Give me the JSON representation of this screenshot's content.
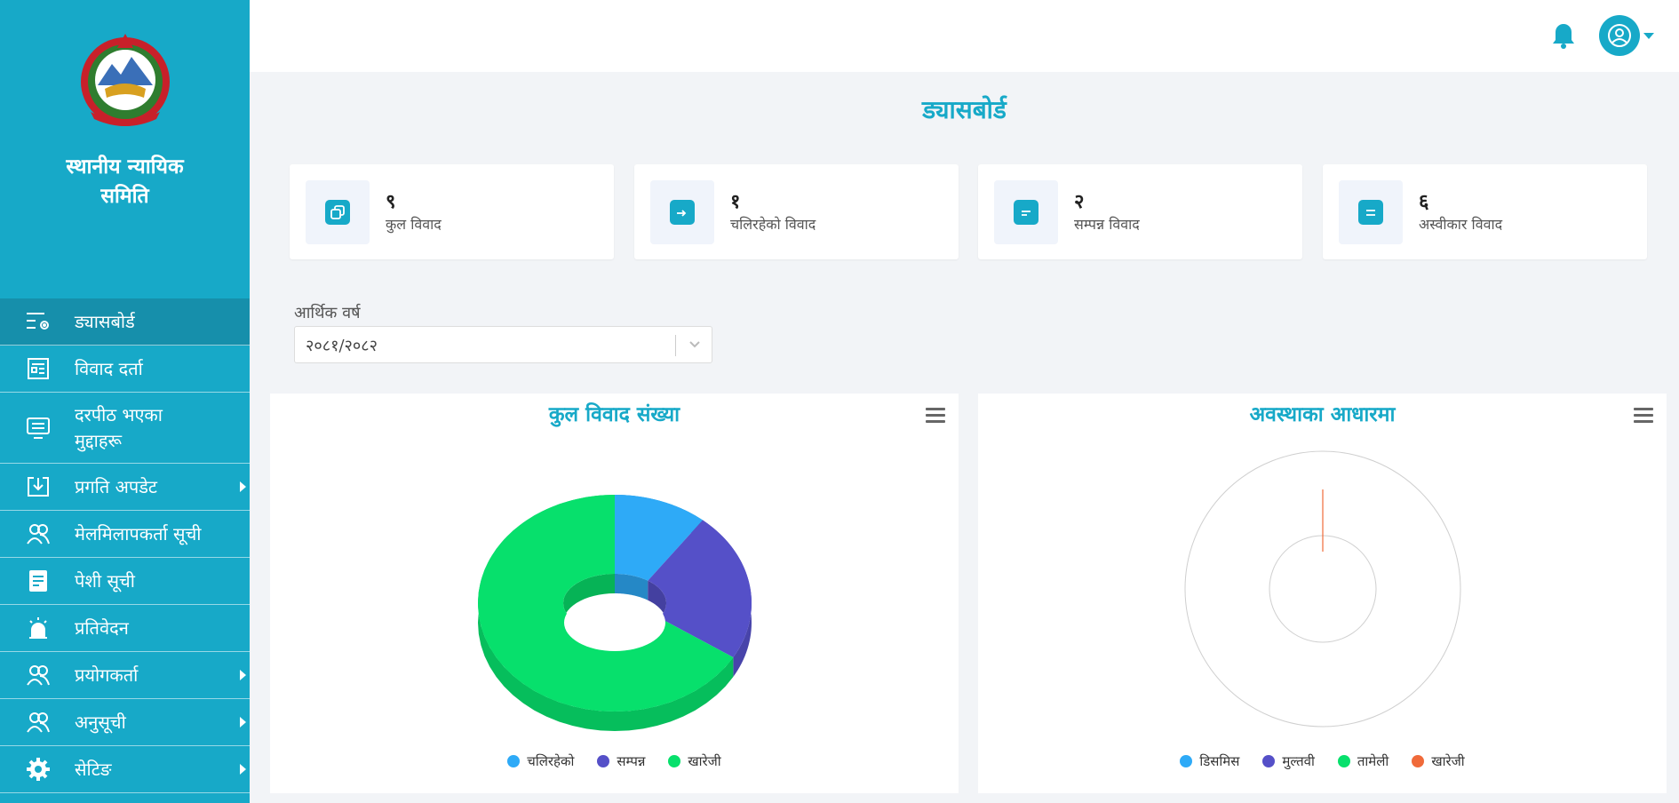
{
  "sidebar": {
    "brand": "स्थानीय न्यायिक समिति",
    "items": [
      {
        "label": "ड्यासबोर्ड",
        "icon": "dashboard-settings-icon",
        "active": true,
        "submenu": false
      },
      {
        "label": "विवाद दर्ता",
        "icon": "form-icon",
        "active": false,
        "submenu": false
      },
      {
        "label": "दरपीठ भएका मुद्दाहरू",
        "icon": "monitor-icon",
        "active": false,
        "submenu": false
      },
      {
        "label": "प्रगति अपडेट",
        "icon": "download-box-icon",
        "active": false,
        "submenu": true
      },
      {
        "label": "मेलमिलापकर्ता सूची",
        "icon": "users-icon",
        "active": false,
        "submenu": false
      },
      {
        "label": "पेशी सूची",
        "icon": "document-icon",
        "active": false,
        "submenu": false
      },
      {
        "label": "प्रतिवेदन",
        "icon": "alarm-icon",
        "active": false,
        "submenu": false
      },
      {
        "label": "प्रयोगकर्ता",
        "icon": "users-icon",
        "active": false,
        "submenu": true
      },
      {
        "label": "अनुसूची",
        "icon": "users-icon",
        "active": false,
        "submenu": true
      },
      {
        "label": "सेटिङ",
        "icon": "gear-icon",
        "active": false,
        "submenu": true
      }
    ]
  },
  "header": {
    "title": "ड्यासबोर्ड"
  },
  "stats": [
    {
      "value": "९",
      "label": "कुल विवाद",
      "icon": "copy-icon"
    },
    {
      "value": "१",
      "label": "चलिरहेको विवाद",
      "icon": "file-arrow-icon"
    },
    {
      "value": "२",
      "label": "सम्पन्न विवाद",
      "icon": "file-text-icon"
    },
    {
      "value": "६",
      "label": "अस्वीकार विवाद",
      "icon": "list-icon"
    }
  ],
  "filter": {
    "label": "आर्थिक वर्ष",
    "value": "२०८१/२०८२"
  },
  "charts": [
    {
      "title": "कुल विवाद संख्या",
      "legend": [
        {
          "name": "चलिरहेको",
          "color": "#2eaaf7"
        },
        {
          "name": "सम्पन्न",
          "color": "#5550c8"
        },
        {
          "name": "खारेजी",
          "color": "#07e06c"
        }
      ]
    },
    {
      "title": "अवस्थाका आधारमा",
      "legend": [
        {
          "name": "डिसमिस",
          "color": "#2eaaf7"
        },
        {
          "name": "मुल्तवी",
          "color": "#5550c8"
        },
        {
          "name": "तामेली",
          "color": "#07e06c"
        },
        {
          "name": "खारेजी",
          "color": "#f06a3a"
        }
      ]
    }
  ],
  "chart_data": [
    {
      "type": "pie",
      "title": "कुल विवाद संख्या",
      "categories": [
        "चलिरहेको",
        "सम्पन्न",
        "खारेजी"
      ],
      "values": [
        1,
        2,
        6
      ]
    },
    {
      "type": "pie",
      "title": "अवस्थाका आधारमा",
      "categories": [
        "डिसमिस",
        "मुल्तवी",
        "तामेली",
        "खारेजी"
      ],
      "values": [
        0,
        0,
        0,
        1
      ]
    }
  ]
}
